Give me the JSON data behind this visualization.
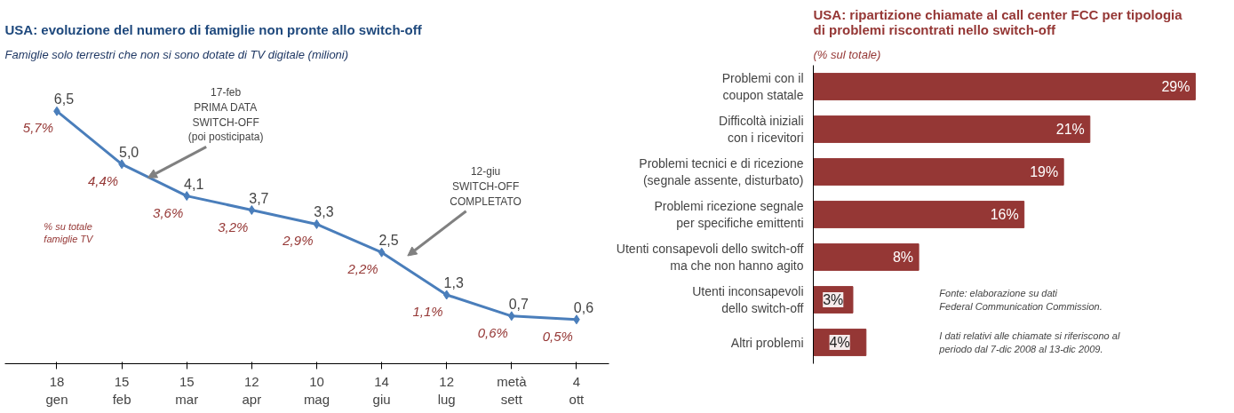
{
  "chart_data": [
    {
      "type": "line",
      "title": "USA: evoluzione del numero di famiglie non pronte allo switch-off",
      "subtitle": "Famiglie solo terrestri che non si sono dotate di TV digitale (milioni)",
      "categories": [
        "18\ngen",
        "15\nfeb",
        "15\nmar",
        "12\napr",
        "10\nmag",
        "14\ngiu",
        "12\nlug",
        "metà\nsett",
        "4\nott"
      ],
      "series": [
        {
          "color": "#4a7ebb",
          "values": [
            6.5,
            5.0,
            4.1,
            3.7,
            3.3,
            2.5,
            1.3,
            0.7,
            0.6
          ],
          "value_labels": [
            "6,5",
            "5,0",
            "4,1",
            "3,7",
            "3,3",
            "2,5",
            "1,3",
            "0,7",
            "0,6"
          ]
        }
      ],
      "marker": "diamond",
      "grid": false,
      "tick_labels": "x",
      "annotations": [
        {
          "text": "5,7%",
          "x": "18\ngen",
          "y": 6.5
        },
        {
          "text": "4,4%",
          "x": "15\nfeb",
          "y": 5.0
        },
        {
          "text": "3,6%",
          "x": "15\nmar",
          "y": 4.1
        },
        {
          "text": "3,2%",
          "x": "12\napr",
          "y": 3.7
        },
        {
          "text": "2,9%",
          "x": "10\nmag",
          "y": 3.3
        },
        {
          "text": "2,2%",
          "x": "14\ngiu",
          "y": 2.5
        },
        {
          "text": "1,1%",
          "x": "12\nlug",
          "y": 1.3
        },
        {
          "text": "0,6%",
          "x": "metà\nsett",
          "y": 0.7
        },
        {
          "text": "0,5%",
          "x": "4\nott",
          "y": 0.6
        },
        "17-feb\nPRIMA DATA\nSWITCH-OFF\n(poi posticipata)",
        "12-giu\nSWITCH-OFF\nCOMPLETATO",
        "% su totale\nfamiglie TV"
      ]
    },
    {
      "type": "bar",
      "orientation": "horizontal",
      "title": "USA: ripartizione chiamate al call center FCC per tipologia\ndi problemi riscontrati nello switch-off",
      "subtitle": "(% sul totale)",
      "categories": [
        "Problemi con il\ncoupon statale",
        "Difficoltà iniziali\ncon i ricevitori",
        "Problemi tecnici e di ricezione\n(segnale assente, disturbato)",
        "Problemi ricezione segnale\nper specifiche emittenti",
        "Utenti consapevoli dello switch-off\nma che non hanno agito",
        "Utenti inconsapevoli\ndello switch-off",
        "Altri problemi"
      ],
      "values": [
        29,
        21,
        19,
        16,
        8,
        3,
        4
      ],
      "value_labels": [
        "29%",
        "21%",
        "19%",
        "16%",
        "8%",
        "3%",
        "4%"
      ],
      "color": "#953735",
      "grid": false,
      "tick_labels": "y",
      "annotations": [
        "Fonte: elaborazione su dati\nFederal Communication Commission.",
        "I dati relativi alle chiamate si riferiscono al\nperiodo dal 7-dic 2008  al 13-dic 2009."
      ]
    }
  ]
}
